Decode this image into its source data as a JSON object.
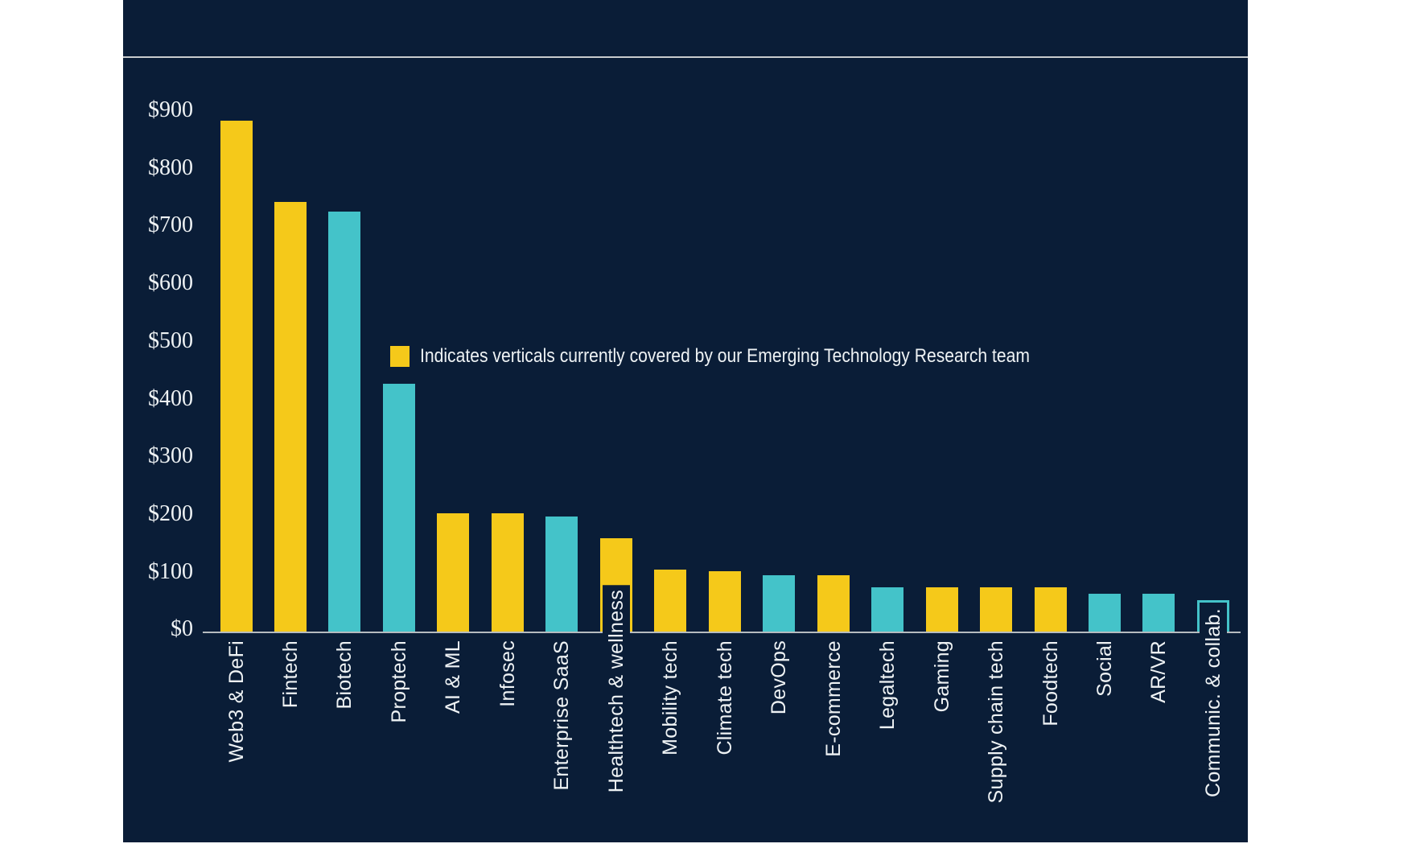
{
  "colors": {
    "page_background": "#FFFFFF",
    "panel_background": "#0A1D37",
    "covered_bar": "#F5C91A",
    "other_bar": "#44C3C9",
    "separator_line": "#C9CCCE",
    "axis_line": "#B6BBBF",
    "text": "#EEF2F4"
  },
  "legend": {
    "label": "Indicates verticals currently covered by our Emerging Technology Research team",
    "swatch_color": "#F5C91A"
  },
  "chart_data": {
    "type": "bar",
    "title": "",
    "xlabel": "",
    "ylabel": "",
    "ylim": [
      0,
      900
    ],
    "grid": "off",
    "legend_position": "middle-left",
    "ytick_labels": [
      "$900",
      "$800",
      "$700",
      "$600",
      "$500",
      "$400",
      "$300",
      "$200",
      "$100",
      "$0"
    ],
    "categories": [
      "Web3 & DeFi",
      "Fintech",
      "Biotech",
      "Proptech",
      "AI & ML",
      "Infosec",
      "Enterprise SaaS",
      "Healthtech & wellness",
      "Mobility tech",
      "Climate tech",
      "DevOps",
      "E-commerce",
      "Legaltech",
      "Gaming",
      "Supply chain tech",
      "Foodtech",
      "Social",
      "AR/VR",
      "Communic. & collab."
    ],
    "values": [
      885,
      745,
      728,
      430,
      205,
      205,
      199,
      162,
      108,
      104,
      98,
      98,
      77,
      77,
      77,
      77,
      66,
      66,
      54
    ],
    "covered_by_research_team": [
      true,
      true,
      false,
      false,
      true,
      true,
      false,
      true,
      true,
      true,
      false,
      true,
      false,
      true,
      true,
      true,
      false,
      false,
      false
    ],
    "hollow_outline_only": [
      false,
      false,
      false,
      false,
      false,
      false,
      false,
      false,
      false,
      false,
      false,
      false,
      false,
      false,
      false,
      false,
      false,
      false,
      true
    ]
  }
}
